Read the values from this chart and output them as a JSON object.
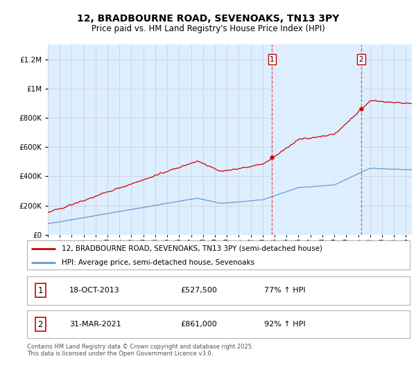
{
  "title": "12, BRADBOURNE ROAD, SEVENOAKS, TN13 3PY",
  "subtitle": "Price paid vs. HM Land Registry's House Price Index (HPI)",
  "ylim": [
    0,
    1300000
  ],
  "yticks": [
    0,
    200000,
    400000,
    600000,
    800000,
    1000000,
    1200000
  ],
  "sale1_year": 2013.792,
  "sale1_price": 527500,
  "sale2_year": 2021.25,
  "sale2_price": 861000,
  "legend_line1": "12, BRADBOURNE ROAD, SEVENOAKS, TN13 3PY (semi-detached house)",
  "legend_line2": "HPI: Average price, semi-detached house, Sevenoaks",
  "ann1_date": "18-OCT-2013",
  "ann1_price": "£527,500",
  "ann1_pct": "77% ↑ HPI",
  "ann2_date": "31-MAR-2021",
  "ann2_price": "£861,000",
  "ann2_pct": "92% ↑ HPI",
  "footer": "Contains HM Land Registry data © Crown copyright and database right 2025.\nThis data is licensed under the Open Government Licence v3.0.",
  "line_color_red": "#cc0000",
  "line_color_blue": "#6699cc",
  "background_plot": "#ddeeff",
  "shade_between": "#ccddef",
  "background_fig": "#ffffff",
  "vline_color": "#dd4444",
  "grid_color": "#cccccc",
  "xlim_start": 1995.0,
  "xlim_end": 2025.5
}
